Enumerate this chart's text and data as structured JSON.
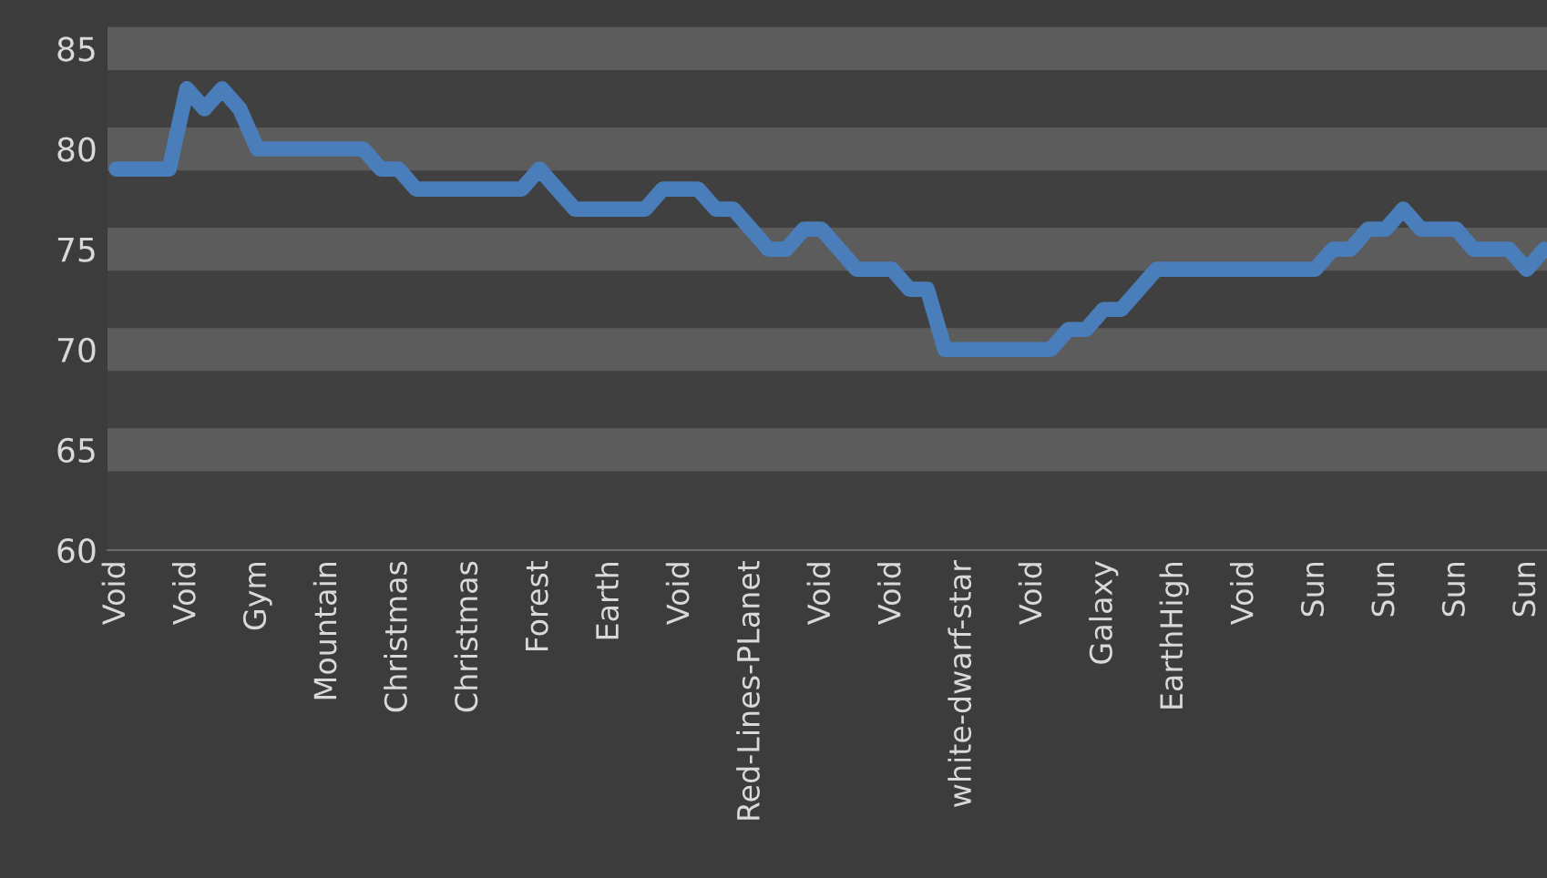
{
  "chart_data": {
    "type": "line",
    "categories": [
      "Void",
      null,
      null,
      null,
      "Void",
      null,
      null,
      null,
      "Gym",
      null,
      null,
      null,
      "Mountain",
      null,
      null,
      null,
      "Christmas",
      null,
      null,
      null,
      "Christmas",
      null,
      null,
      null,
      "Forest",
      null,
      null,
      null,
      "Earth",
      null,
      null,
      null,
      "Void",
      null,
      null,
      null,
      "Red-Lines-PLanet",
      null,
      null,
      null,
      "Void",
      null,
      null,
      null,
      "Void",
      null,
      null,
      null,
      "white-dwarf-star",
      null,
      null,
      null,
      "Void",
      null,
      null,
      null,
      "Galaxy",
      null,
      null,
      null,
      "EarthHigh",
      null,
      null,
      null,
      "Void",
      null,
      null,
      null,
      "Sun",
      null,
      null,
      null,
      "Sun",
      null,
      null,
      null,
      "Sun",
      null,
      null,
      null,
      "Sun",
      null
    ],
    "series": [
      {
        "color": "#4a7ebb",
        "values": [
          79,
          79,
          79,
          79,
          83,
          82,
          83,
          82,
          80,
          80,
          80,
          80,
          80,
          80,
          80,
          79,
          79,
          78,
          78,
          78,
          78,
          78,
          78,
          78,
          79,
          78,
          77,
          77,
          77,
          77,
          77,
          78,
          78,
          78,
          77,
          77,
          76,
          75,
          75,
          76,
          76,
          75,
          74,
          74,
          74,
          73,
          73,
          70,
          70,
          70,
          70,
          70,
          70,
          70,
          71,
          71,
          72,
          72,
          73,
          74,
          74,
          74,
          74,
          74,
          74,
          74,
          74,
          74,
          74,
          75,
          75,
          76,
          76,
          77,
          76,
          76,
          76,
          75,
          75,
          75,
          74,
          75
        ]
      }
    ],
    "ylim": [
      60,
      85
    ],
    "yticks": [
      60,
      65,
      70,
      75,
      80,
      85
    ],
    "grid": "y",
    "marker": "none",
    "line_style": "solid"
  }
}
